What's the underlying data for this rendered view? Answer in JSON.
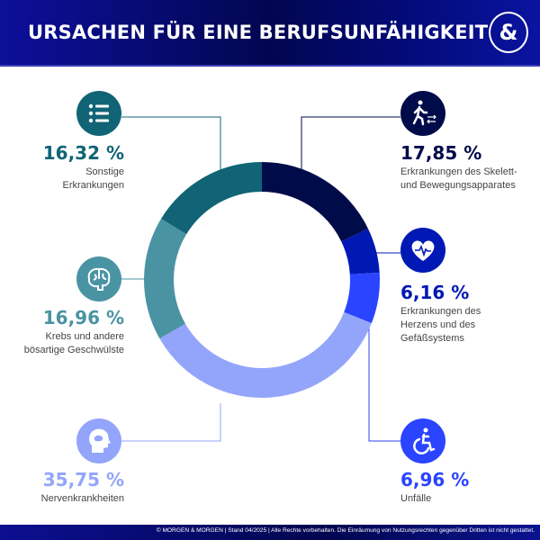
{
  "header": {
    "title": "URSACHEN FÜR EINE BERUFSUNFÄHIGKEIT",
    "logo": "&"
  },
  "footer": {
    "text": "© MORGEN & MORGEN | Stand 04/2025 | Alle Rechte vorbehalten. Die Einräumung von Nutzungsrechten gegenüber Dritten ist nicht gestattet."
  },
  "chart_data": {
    "type": "pie",
    "donut": true,
    "start": "top",
    "direction": "clockwise",
    "slices": [
      {
        "label_pct": "17,85 %",
        "value": 17.85,
        "label": [
          "Erkrankungen des Skelett-",
          "und Bewegungsapparates"
        ],
        "color": "#000b4a",
        "icon": "walking-person-icon"
      },
      {
        "label_pct": "6,16 %",
        "value": 6.16,
        "label": [
          "Erkrankungen des",
          "Herzens und des",
          "Gefäßsystems"
        ],
        "color": "#0019b5",
        "icon": "heart-pulse-icon"
      },
      {
        "label_pct": "6,96 %",
        "value": 6.96,
        "label": [
          "Unfälle"
        ],
        "color": "#2a44ff",
        "icon": "wheelchair-icon"
      },
      {
        "label_pct": "35,75 %",
        "value": 35.75,
        "label": [
          "Nervenkrankheiten"
        ],
        "color": "#93a5fb",
        "icon": "head-profile-icon"
      },
      {
        "label_pct": "16,96 %",
        "value": 16.96,
        "label": [
          "Krebs und andere",
          "bösartige Geschwülste"
        ],
        "color": "#4a93a3",
        "icon": "brain-icon"
      },
      {
        "label_pct": "16,32 %",
        "value": 16.32,
        "label": [
          "Sonstige",
          "Erkrankungen"
        ],
        "color": "#106475",
        "icon": "list-icon"
      }
    ]
  }
}
